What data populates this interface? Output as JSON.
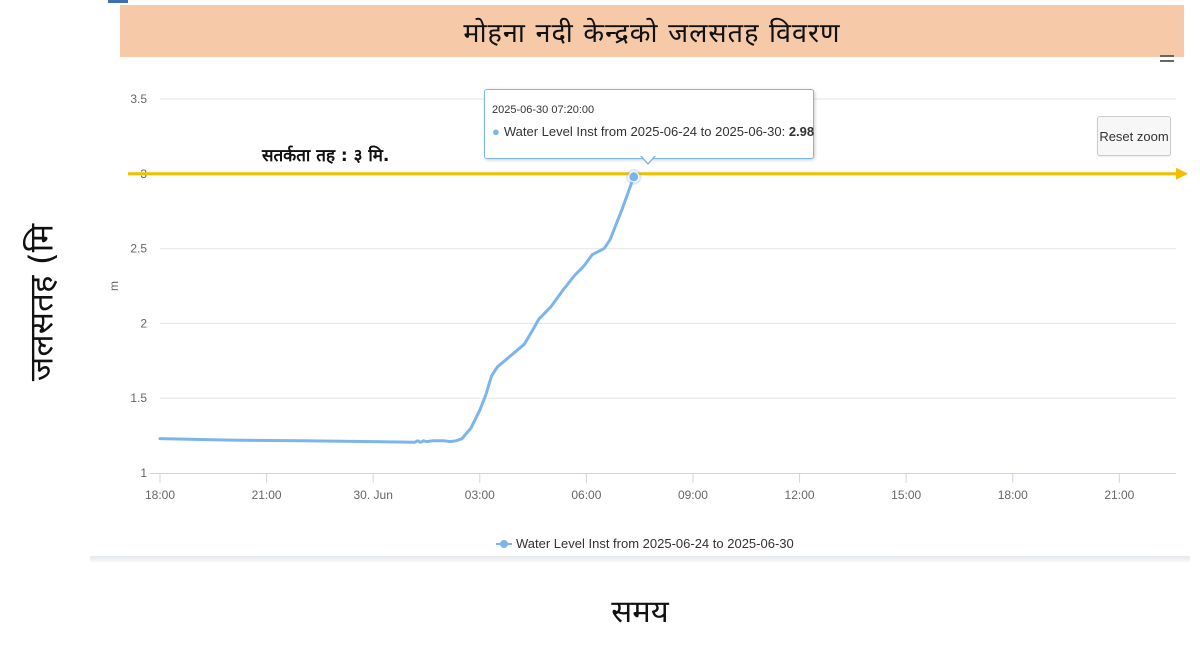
{
  "banner": {
    "title": "मोहना नदी केन्द्रको जलसतह विवरण"
  },
  "chart_subtitle": "Water Level Inst from 2025-06-24 to 2025-06-30",
  "side_labels": {
    "y": "जलसतह (मि",
    "x": "समय"
  },
  "warning": {
    "label": "सतर्कता तह : ३ मि."
  },
  "reset_zoom": {
    "label": "Reset zoom"
  },
  "tooltip": {
    "time": "2025-06-30 07:20:00",
    "series": "Water Level Inst from 2025-06-24 to 2025-06-30",
    "value": "2.98"
  },
  "legend": {
    "label": "Water Level Inst from 2025-06-24 to 2025-06-30"
  },
  "colors": {
    "series": "#7cb5ec",
    "threshold": "#f5bd00",
    "banner": "#f6c9a8",
    "grid": "#e6e6e6"
  },
  "chart_data": {
    "type": "line",
    "ylabel": "m",
    "ylim": [
      1,
      3.5
    ],
    "yticks": [
      "1",
      "1.5",
      "2",
      "2.5",
      "3",
      "3.5"
    ],
    "xlim": [
      "2025-06-29 18:00",
      "2025-06-30 21:45"
    ],
    "xticks": [
      {
        "label": "18:00",
        "at": "2025-06-29 18:00"
      },
      {
        "label": "21:00",
        "at": "2025-06-29 21:00"
      },
      {
        "label": "30. Jun",
        "at": "2025-06-30 00:00"
      },
      {
        "label": "03:00",
        "at": "2025-06-30 03:00"
      },
      {
        "label": "06:00",
        "at": "2025-06-30 06:00"
      },
      {
        "label": "09:00",
        "at": "2025-06-30 09:00"
      },
      {
        "label": "12:00",
        "at": "2025-06-30 12:00"
      },
      {
        "label": "15:00",
        "at": "2025-06-30 15:00"
      },
      {
        "label": "18:00",
        "at": "2025-06-30 18:00"
      },
      {
        "label": "21:00",
        "at": "2025-06-30 21:00"
      }
    ],
    "threshold": {
      "value": 3.0
    },
    "highlight": {
      "x": "2025-06-30 07:20",
      "y": 2.98
    },
    "series": [
      {
        "name": "Water Level Inst from 2025-06-24 to 2025-06-30",
        "points": [
          [
            "2025-06-29 18:00",
            1.23
          ],
          [
            "2025-06-29 20:00",
            1.22
          ],
          [
            "2025-06-29 22:00",
            1.215
          ],
          [
            "2025-06-30 00:00",
            1.21
          ],
          [
            "2025-06-30 01:10",
            1.205
          ],
          [
            "2025-06-30 01:15",
            1.215
          ],
          [
            "2025-06-30 01:20",
            1.205
          ],
          [
            "2025-06-30 01:25",
            1.215
          ],
          [
            "2025-06-30 01:30",
            1.21
          ],
          [
            "2025-06-30 01:40",
            1.215
          ],
          [
            "2025-06-30 02:00",
            1.215
          ],
          [
            "2025-06-30 02:10",
            1.21
          ],
          [
            "2025-06-30 02:20",
            1.215
          ],
          [
            "2025-06-30 02:30",
            1.23
          ],
          [
            "2025-06-30 02:45",
            1.3
          ],
          [
            "2025-06-30 03:00",
            1.42
          ],
          [
            "2025-06-30 03:10",
            1.52
          ],
          [
            "2025-06-30 03:20",
            1.65
          ],
          [
            "2025-06-30 03:30",
            1.71
          ],
          [
            "2025-06-30 03:45",
            1.76
          ],
          [
            "2025-06-30 04:00",
            1.81
          ],
          [
            "2025-06-30 04:15",
            1.86
          ],
          [
            "2025-06-30 04:30",
            1.96
          ],
          [
            "2025-06-30 04:40",
            2.03
          ],
          [
            "2025-06-30 05:00",
            2.11
          ],
          [
            "2025-06-30 05:20",
            2.22
          ],
          [
            "2025-06-30 05:40",
            2.32
          ],
          [
            "2025-06-30 05:55",
            2.38
          ],
          [
            "2025-06-30 06:10",
            2.46
          ],
          [
            "2025-06-30 06:30",
            2.5
          ],
          [
            "2025-06-30 06:40",
            2.56
          ],
          [
            "2025-06-30 07:00",
            2.76
          ],
          [
            "2025-06-30 07:20",
            2.98
          ]
        ]
      }
    ]
  }
}
